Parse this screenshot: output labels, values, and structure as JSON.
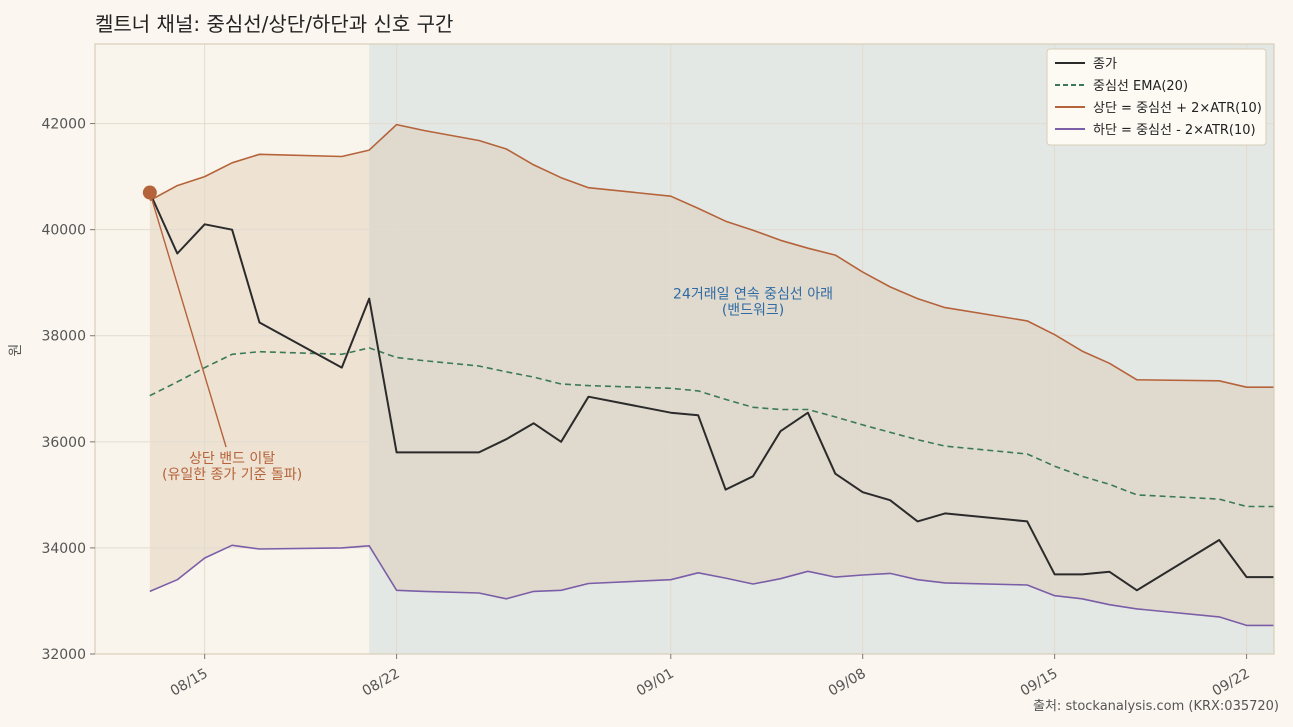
{
  "chart_data": {
    "type": "line",
    "title": "켈트너 채널: 중심선/상단/하단과 신호 구간",
    "ylabel": "원",
    "xlabel": "",
    "ylim": [
      32000,
      43500
    ],
    "yticks": [
      32000,
      34000,
      36000,
      38000,
      40000,
      42000
    ],
    "xlim": [
      "2025-08-11",
      "2025-09-23"
    ],
    "xticks": [
      {
        "date": "2025-08-15",
        "label": "08/15"
      },
      {
        "date": "2025-08-22",
        "label": "08/22"
      },
      {
        "date": "2025-09-01",
        "label": "09/01"
      },
      {
        "date": "2025-09-08",
        "label": "09/08"
      },
      {
        "date": "2025-09-15",
        "label": "09/15"
      },
      {
        "date": "2025-09-22",
        "label": "09/22"
      }
    ],
    "grid": true,
    "legend_position": "top-right",
    "x": [
      "2025-08-13",
      "2025-08-14",
      "2025-08-15",
      "2025-08-16",
      "2025-08-17",
      "2025-08-20",
      "2025-08-21",
      "2025-08-22",
      "2025-08-23",
      "2025-08-25",
      "2025-08-26",
      "2025-08-27",
      "2025-08-28",
      "2025-08-29",
      "2025-09-01",
      "2025-09-02",
      "2025-09-03",
      "2025-09-04",
      "2025-09-05",
      "2025-09-06",
      "2025-09-07",
      "2025-09-08",
      "2025-09-09",
      "2025-09-10",
      "2025-09-11",
      "2025-09-14",
      "2025-09-15",
      "2025-09-16",
      "2025-09-17",
      "2025-09-18",
      "2025-09-21",
      "2025-09-22",
      "2025-09-23"
    ],
    "series": [
      {
        "name": "종가",
        "color": "#2b2b2b",
        "style": "solid",
        "values": [
          40700,
          39550,
          40100,
          40000,
          38250,
          37400,
          38700,
          35800,
          35800,
          35800,
          36050,
          36350,
          36000,
          36850,
          36550,
          36500,
          35100,
          35350,
          36200,
          36550,
          35400,
          35050,
          34900,
          34500,
          34650,
          34500,
          33500,
          33500,
          33550,
          33200,
          34150,
          33450,
          33450
        ]
      },
      {
        "name": "중심선 EMA(20)",
        "color": "#3b7a57",
        "style": "dashed",
        "values": [
          36870,
          37130,
          37400,
          37650,
          37700,
          37650,
          37770,
          37590,
          37530,
          37430,
          37320,
          37220,
          37090,
          37060,
          37010,
          36960,
          36800,
          36650,
          36610,
          36610,
          36470,
          36320,
          36180,
          36040,
          35920,
          35770,
          35540,
          35350,
          35200,
          35000,
          34920,
          34780,
          34780
        ]
      },
      {
        "name": "상단 = 중심선 + 2×ATR(10)",
        "color": "#b5633a",
        "style": "solid",
        "values": [
          40550,
          40830,
          41000,
          41260,
          41420,
          41380,
          41500,
          41980,
          41870,
          41680,
          41520,
          41220,
          40980,
          40790,
          40630,
          40400,
          40160,
          39990,
          39800,
          39650,
          39520,
          39200,
          38920,
          38700,
          38530,
          38280,
          38020,
          37710,
          37480,
          37170,
          37150,
          37030,
          37030
        ]
      },
      {
        "name": "하단 = 중심선 - 2×ATR(10)",
        "color": "#7b5ea7",
        "style": "solid",
        "values": [
          33180,
          33400,
          33810,
          34050,
          33980,
          34000,
          34040,
          33200,
          33180,
          33150,
          33040,
          33180,
          33200,
          33330,
          33400,
          33530,
          33430,
          33320,
          33420,
          33560,
          33450,
          33490,
          33520,
          33400,
          33340,
          33300,
          33100,
          33040,
          32930,
          32850,
          32700,
          32540,
          32540
        ]
      }
    ],
    "shaded_regions": [
      {
        "from": "2025-08-21",
        "to": "2025-09-23",
        "color": "#dfe5e4"
      }
    ],
    "markers": [
      {
        "x": "2025-08-13",
        "y": 40700,
        "color": "#b5633a"
      }
    ],
    "annotations": [
      {
        "lines": [
          "상단 밴드 이탈",
          "(유일한 종가 기준 돌파)"
        ],
        "color": "#b5633a",
        "text_x": "2025-08-16",
        "text_y": 35600,
        "arrow_to": {
          "x": "2025-08-13",
          "y": 40700
        }
      },
      {
        "lines": [
          "24거래일 연속 중심선 아래",
          "(밴드워크)"
        ],
        "color": "#2f6aa3",
        "text_x": "2025-09-04",
        "text_y": 38700
      }
    ],
    "source": "출처: stockanalysis.com (KRX:035720)"
  }
}
